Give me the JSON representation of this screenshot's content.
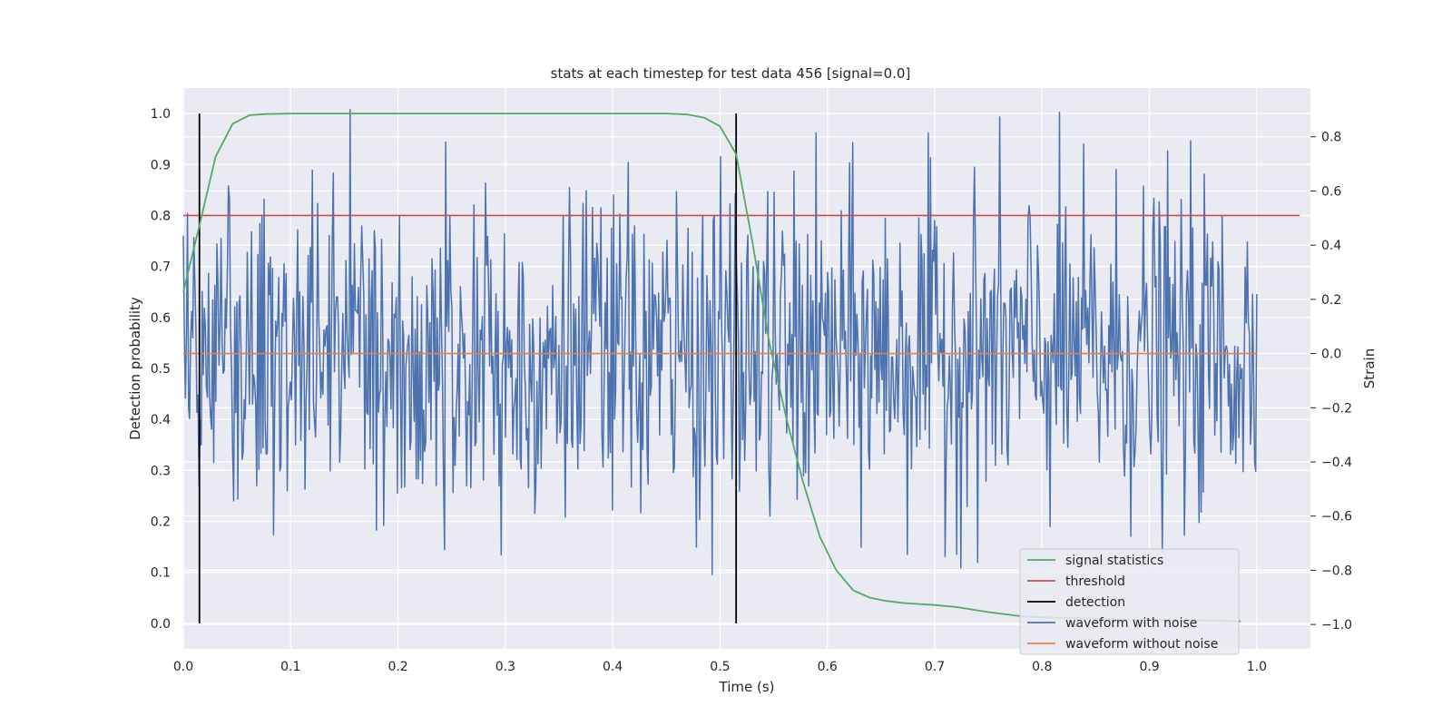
{
  "chart_data": {
    "type": "line",
    "title": "stats at each timestep for test data 456 [signal=0.0]",
    "xlabel": "Time (s)",
    "ylabel_left": "Detection probability",
    "ylabel_right": "Strain",
    "xlim": [
      0.0,
      1.05
    ],
    "ylim_left": [
      -0.05,
      1.05
    ],
    "ylim_right": [
      -1.09,
      0.98
    ],
    "x_ticks": [
      "0.0",
      "0.1",
      "0.2",
      "0.3",
      "0.4",
      "0.5",
      "0.6",
      "0.7",
      "0.8",
      "0.9",
      "1.0"
    ],
    "y_left_ticks": [
      "0.0",
      "0.1",
      "0.2",
      "0.3",
      "0.4",
      "0.5",
      "0.6",
      "0.7",
      "0.8",
      "0.9",
      "1.0"
    ],
    "y_right_ticks": [
      "−1.0",
      "−0.8",
      "−0.6",
      "−0.4",
      "−0.2",
      "0.0",
      "0.2",
      "0.4",
      "0.6",
      "0.8"
    ],
    "grid": true,
    "legend_position": "bottom-right",
    "colors": {
      "signal_statistics": "#55a868",
      "threshold": "#c44e52",
      "detection": "#000000",
      "waveform_with_noise": "#4c72b0",
      "waveform_without_noise": "#dd8452",
      "background": "#eaeaf2",
      "grid": "#ffffff"
    },
    "series": [
      {
        "name": "signal statistics",
        "axis": "left",
        "x": [
          0.0,
          0.015,
          0.03,
          0.046,
          0.062,
          0.077,
          0.1,
          0.2,
          0.3,
          0.4,
          0.45,
          0.47,
          0.485,
          0.5,
          0.515,
          0.53,
          0.546,
          0.562,
          0.577,
          0.593,
          0.608,
          0.624,
          0.64,
          0.655,
          0.67,
          0.7,
          0.72,
          0.75,
          0.78,
          0.8,
          0.85,
          0.9,
          0.95,
          0.985
        ],
        "y": [
          0.65,
          0.78,
          0.915,
          0.98,
          0.997,
          0.999,
          1.0,
          1.0,
          1.0,
          1.0,
          1.0,
          0.998,
          0.992,
          0.975,
          0.92,
          0.75,
          0.55,
          0.4,
          0.28,
          0.17,
          0.105,
          0.065,
          0.05,
          0.044,
          0.04,
          0.036,
          0.032,
          0.022,
          0.014,
          0.012,
          0.009,
          0.007,
          0.006,
          0.004
        ]
      },
      {
        "name": "threshold",
        "axis": "left",
        "x": [
          0.0,
          1.04
        ],
        "y": [
          0.8,
          0.8
        ]
      },
      {
        "name": "detection",
        "axis": "left",
        "type": "vlines",
        "x": [
          0.015,
          0.515
        ],
        "ymin": 0.0,
        "ymax": 1.0
      },
      {
        "name": "waveform with noise",
        "axis": "right",
        "x_range": [
          0.0,
          1.0
        ],
        "samples": 1024,
        "y_range_approx": [
          -1.0,
          0.9
        ]
      },
      {
        "name": "waveform without noise",
        "axis": "right",
        "x": [
          0.0,
          1.0
        ],
        "y": [
          0.0,
          0.0
        ]
      }
    ]
  }
}
